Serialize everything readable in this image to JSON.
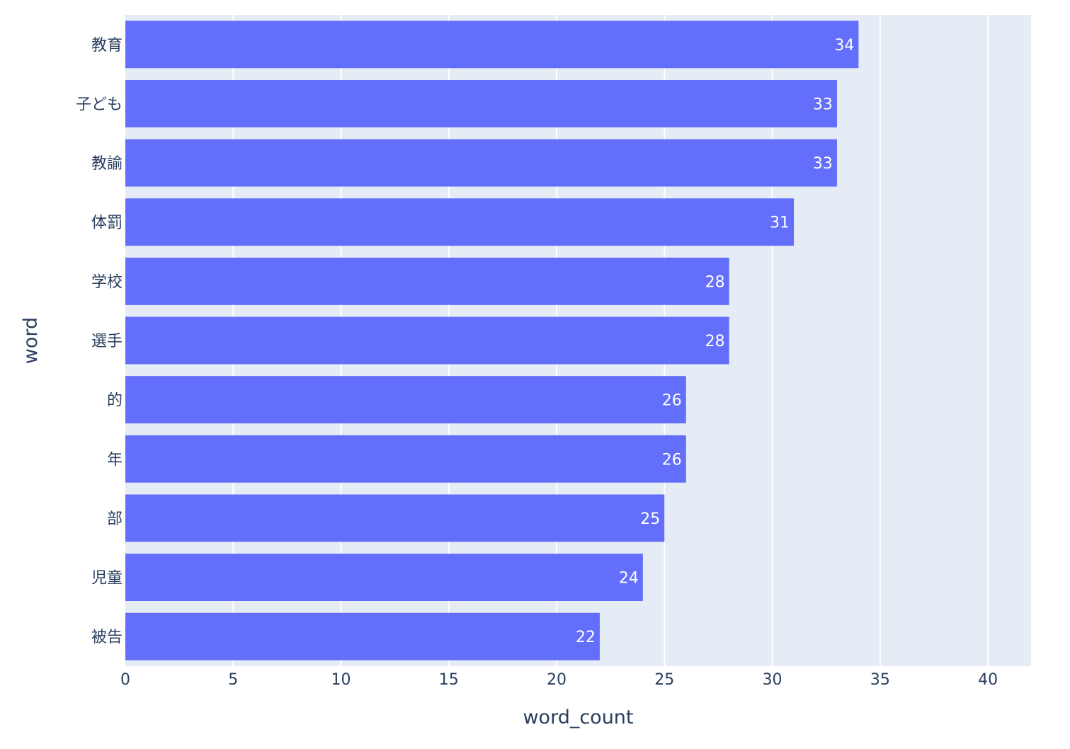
{
  "chart_data": {
    "type": "bar",
    "orientation": "horizontal",
    "categories": [
      "教育",
      "子ども",
      "教諭",
      "体罰",
      "学校",
      "選手",
      "的",
      "年",
      "部",
      "児童",
      "被告"
    ],
    "values": [
      34,
      33,
      33,
      31,
      28,
      28,
      26,
      26,
      25,
      24,
      22
    ],
    "xlabel": "word_count",
    "ylabel": "word",
    "xlim": [
      0,
      42
    ],
    "xticks": [
      0,
      5,
      10,
      15,
      20,
      25,
      30,
      35,
      40
    ],
    "grid": true,
    "colors": {
      "bar": "#636efa",
      "plot_background": "#e5ecf6",
      "gridline": "#ffffff",
      "text": "#2a3f5f",
      "bar_label": "#ffffff"
    }
  }
}
